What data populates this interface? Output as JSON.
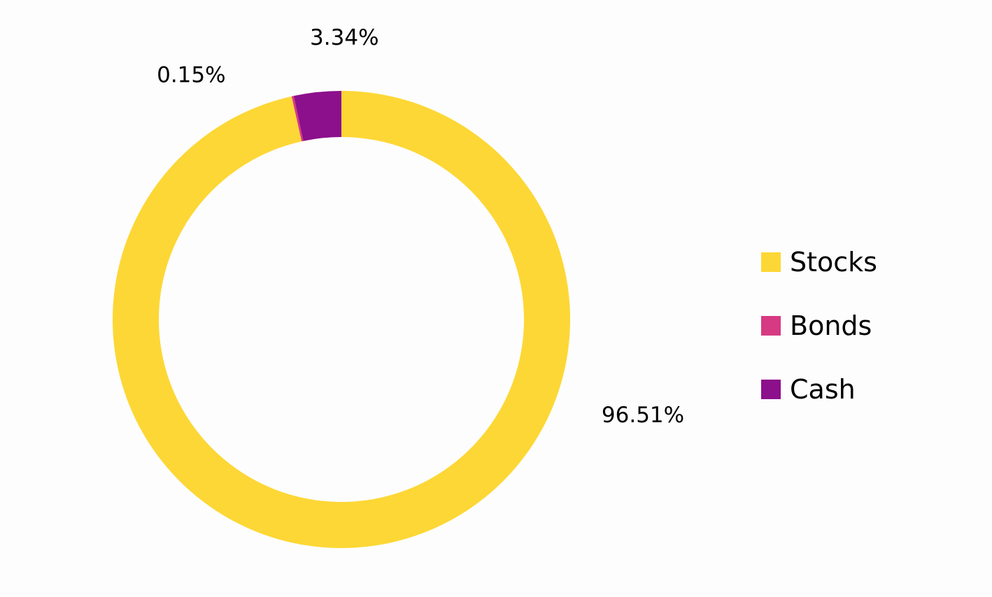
{
  "chart_data": {
    "type": "pie",
    "variant": "donut",
    "title": "",
    "categories": [
      "Stocks",
      "Bonds",
      "Cash"
    ],
    "values": [
      96.51,
      0.15,
      3.34
    ],
    "labels": [
      "96.51%",
      "0.15%",
      "3.34%"
    ],
    "colors": [
      "#fdd735",
      "#d63a82",
      "#8c0f8c"
    ],
    "legend_position": "right",
    "start": "top",
    "direction": "clockwise"
  }
}
